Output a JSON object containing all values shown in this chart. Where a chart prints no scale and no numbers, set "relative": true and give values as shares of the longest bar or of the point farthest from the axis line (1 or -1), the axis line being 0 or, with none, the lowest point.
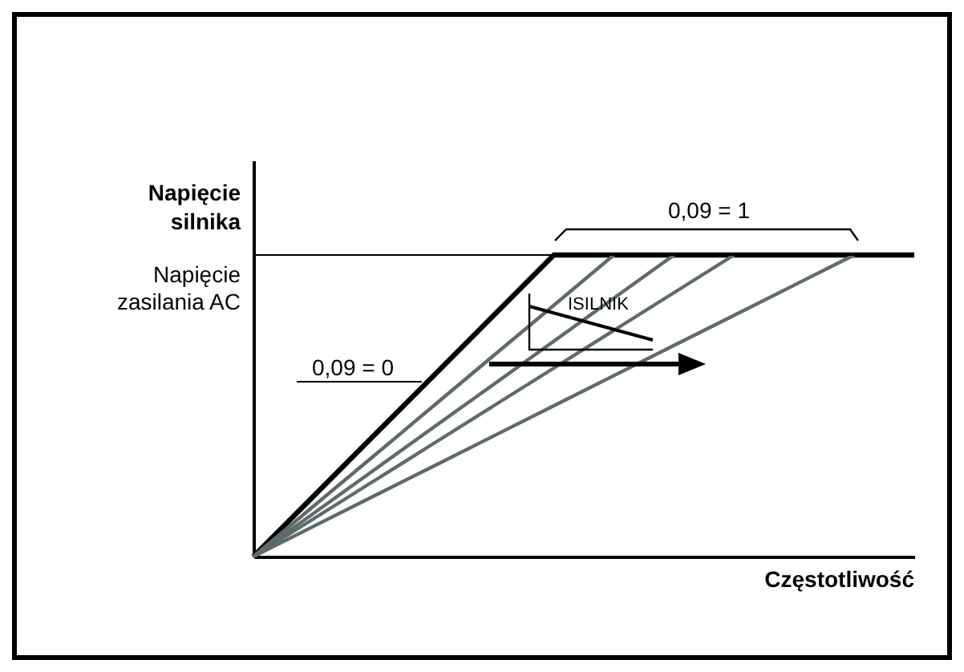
{
  "chart_data": {
    "type": "line",
    "relative": true,
    "ylabel": "Napięcie silnika",
    "xlabel": "Częstotliwość",
    "categories": [
      null,
      null,
      null,
      null,
      null,
      null,
      null,
      null,
      null,
      null,
      null,
      null
    ],
    "series": [
      {
        "color": "#000000",
        "values": [
          0,
          0.2,
          0.4,
          0.6,
          0.8,
          1,
          1,
          1,
          1,
          1,
          1,
          1
        ]
      },
      {
        "color": "#5f6b6b",
        "values": [
          0,
          0.167,
          0.333,
          0.5,
          0.667,
          0.833,
          1,
          null,
          null,
          null,
          null,
          null
        ]
      },
      {
        "color": "#5f6b6b",
        "values": [
          0,
          0.143,
          0.286,
          0.429,
          0.571,
          0.714,
          0.857,
          1,
          null,
          null,
          null,
          null
        ]
      },
      {
        "color": "#5f6b6b",
        "values": [
          0,
          0.125,
          0.25,
          0.375,
          0.5,
          0.625,
          0.75,
          0.875,
          1,
          null,
          null,
          null
        ]
      },
      {
        "color": "#5f6b6b",
        "values": [
          0,
          0.1,
          0.2,
          0.3,
          0.4,
          0.5,
          0.6,
          0.7,
          0.8,
          0.9,
          1,
          null
        ]
      }
    ],
    "ref_lines": [
      {
        "axis": "y",
        "value": 1,
        "label": "Napięcie zasilania AC",
        "color": "#000000"
      }
    ],
    "annotations": [
      "0,09 = 0",
      "0,09 = 1",
      "ISILNIK"
    ]
  }
}
